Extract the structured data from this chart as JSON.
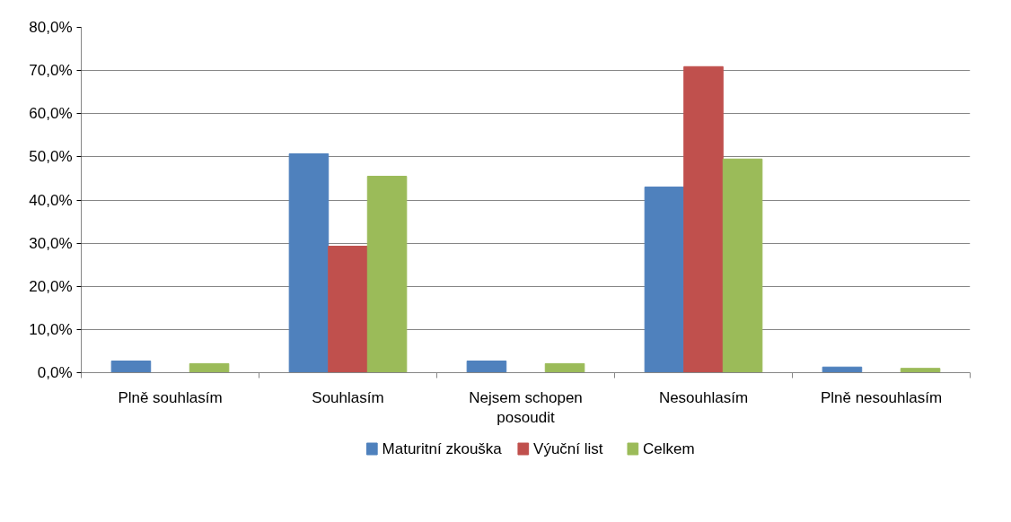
{
  "chart_data": {
    "type": "bar",
    "categories": [
      "Plně souhlasím",
      "Souhlasím",
      "Nejsem schopen posoudit",
      "Nesouhlasím",
      "Plně nesouhlasím"
    ],
    "series": [
      {
        "name": "Maturitní zkouška",
        "color": "#4f81bd",
        "values": [
          2.7,
          50.7,
          2.7,
          43.0,
          1.3
        ]
      },
      {
        "name": "Výuční list",
        "color": "#c0504d",
        "values": [
          0,
          29.3,
          0,
          70.9,
          0
        ]
      },
      {
        "name": "Celkem",
        "color": "#9bbb59",
        "values": [
          2.1,
          45.5,
          2.1,
          49.5,
          1.0
        ]
      }
    ],
    "ylim": [
      0,
      80
    ],
    "yticks": [
      {
        "value": 0,
        "label": "0,0%"
      },
      {
        "value": 10,
        "label": "10,0%"
      },
      {
        "value": 20,
        "label": "20,0%"
      },
      {
        "value": 30,
        "label": "30,0%"
      },
      {
        "value": 40,
        "label": "40,0%"
      },
      {
        "value": 50,
        "label": "50,0%"
      },
      {
        "value": 60,
        "label": "60,0%"
      },
      {
        "value": 70,
        "label": "70,0%"
      },
      {
        "value": 80,
        "label": "80,0%"
      }
    ],
    "grid": "y",
    "legend": "bottom"
  }
}
